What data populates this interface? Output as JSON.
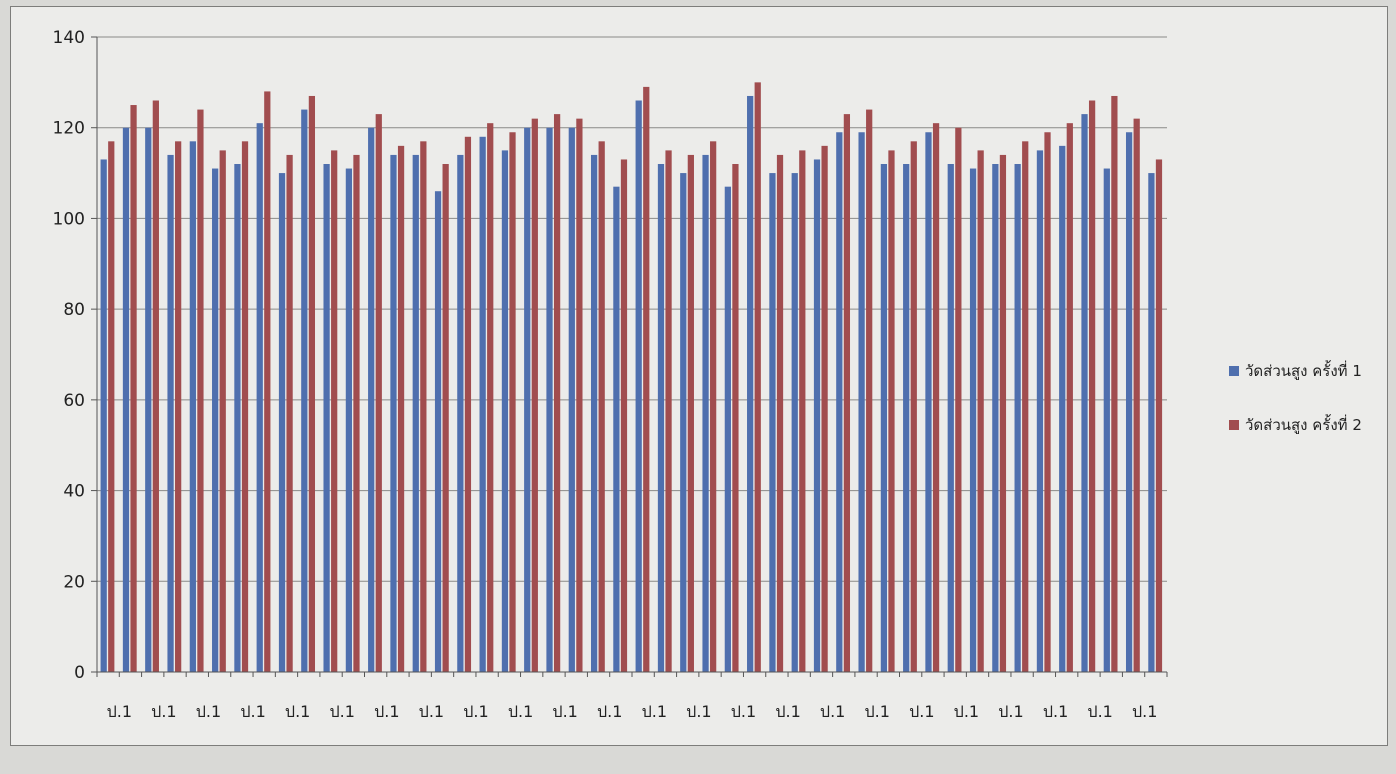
{
  "chart_data": {
    "type": "bar",
    "title": "",
    "xlabel": "",
    "ylabel": "",
    "ylim": [
      0,
      140
    ],
    "yticks": [
      0,
      20,
      40,
      60,
      80,
      100,
      120,
      140
    ],
    "grid": true,
    "legend_position": "right",
    "categories": [
      "ป.1",
      "ป.1",
      "ป.1",
      "ป.1",
      "ป.1",
      "ป.1",
      "ป.1",
      "ป.1",
      "ป.1",
      "ป.1",
      "ป.1",
      "ป.1",
      "ป.1",
      "ป.1",
      "ป.1",
      "ป.1",
      "ป.1",
      "ป.1",
      "ป.1",
      "ป.1",
      "ป.1",
      "ป.1",
      "ป.1",
      "ป.1",
      "ป.1",
      "ป.1",
      "ป.1",
      "ป.1",
      "ป.1",
      "ป.1",
      "ป.1",
      "ป.1",
      "ป.1",
      "ป.1",
      "ป.1",
      "ป.1",
      "ป.1",
      "ป.1",
      "ป.1",
      "ป.1",
      "ป.1",
      "ป.1",
      "ป.1",
      "ป.1",
      "ป.1",
      "ป.1",
      "ป.1",
      "ป.1"
    ],
    "tick_label_every": 2,
    "series": [
      {
        "name": "วัดส่วนสูง ครั้งที่ 1",
        "color": "#4f6fae",
        "values": [
          113,
          120,
          120,
          114,
          117,
          111,
          112,
          121,
          110,
          124,
          112,
          111,
          120,
          114,
          114,
          106,
          114,
          118,
          115,
          120,
          120,
          120,
          114,
          107,
          126,
          112,
          110,
          114,
          107,
          127,
          110,
          110,
          113,
          119,
          119,
          112,
          112,
          119,
          112,
          111,
          112,
          112,
          115,
          116,
          123,
          111,
          119,
          110
        ]
      },
      {
        "name": "วัดส่วนสูง ครั้งที่ 2",
        "color": "#a14d4f",
        "values": [
          117,
          125,
          126,
          117,
          124,
          115,
          117,
          128,
          114,
          127,
          115,
          114,
          123,
          116,
          117,
          112,
          118,
          121,
          119,
          122,
          123,
          122,
          117,
          113,
          129,
          115,
          114,
          117,
          112,
          130,
          114,
          115,
          116,
          123,
          124,
          115,
          117,
          121,
          120,
          115,
          114,
          117,
          119,
          121,
          126,
          127,
          122,
          113
        ]
      }
    ]
  }
}
